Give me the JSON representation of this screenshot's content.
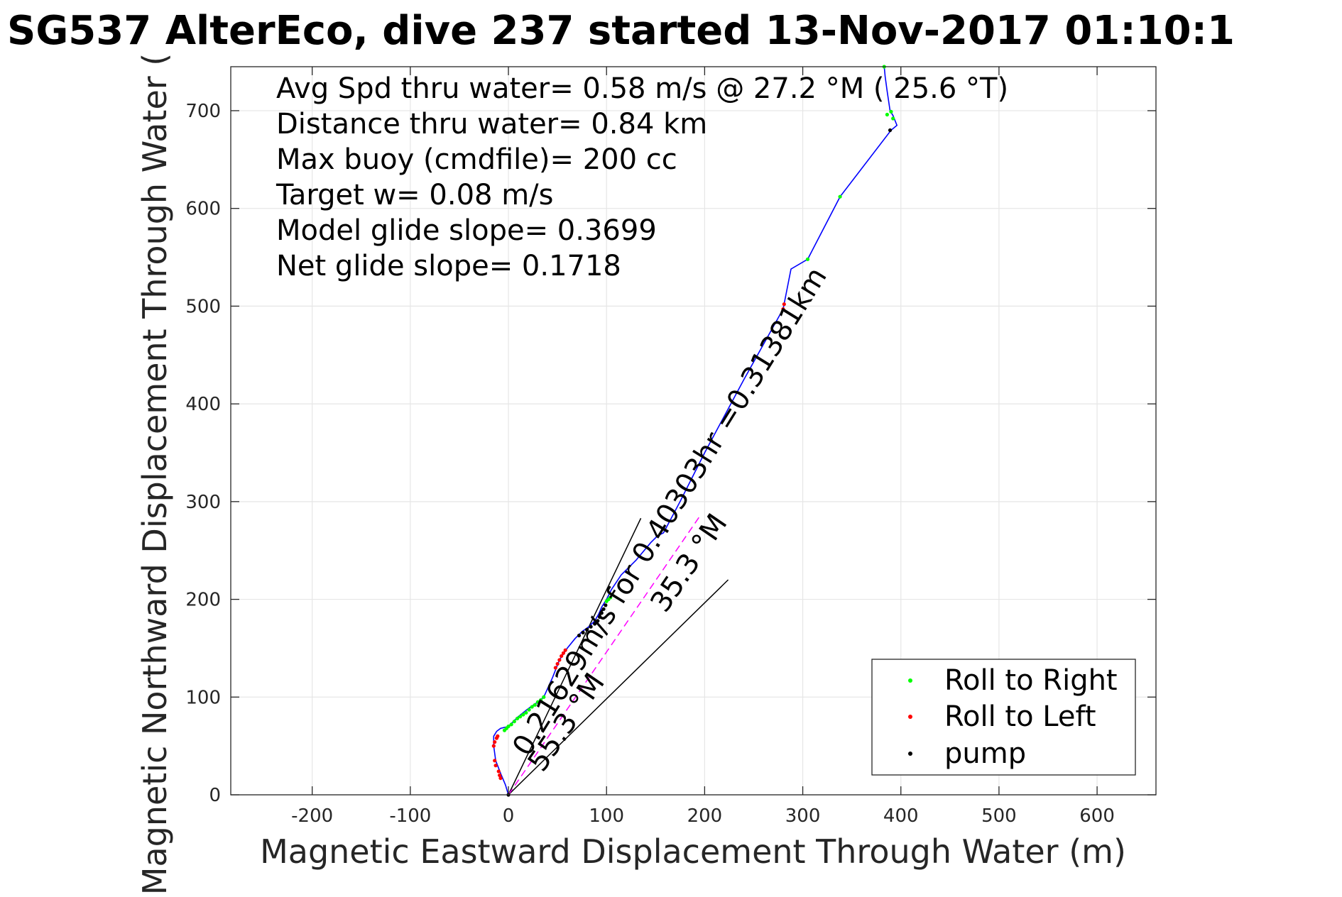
{
  "chart_data": {
    "type": "line",
    "title": "SG537 AlterEco, dive 237 started 13-Nov-2017 01:10:1",
    "xlabel": "Magnetic Eastward Displacement Through Water (m)",
    "ylabel": "Magnetic Northward Displacement Through Water (",
    "xlim": [
      -283,
      660
    ],
    "ylim": [
      0,
      745
    ],
    "xticks": [
      -200,
      -100,
      0,
      100,
      200,
      300,
      400,
      500,
      600
    ],
    "yticks": [
      0,
      100,
      200,
      300,
      400,
      500,
      600,
      700
    ],
    "grid": true,
    "legend_position": "bottom-right",
    "info_text": [
      "Avg Spd thru water=  0.58 m/s @  27.2 °M ( 25.6 °T)",
      "Distance thru water=  0.84 km",
      "Max buoy (cmdfile)= 200 cc",
      "Target w= 0.08 m/s",
      "Model glide slope= 0.3699",
      "Net glide slope= 0.1718"
    ],
    "track": {
      "color": "#0000ff",
      "x": [
        0,
        -3,
        -8,
        -13,
        -15,
        -15,
        -12,
        -8,
        0,
        10,
        20,
        30,
        36,
        45,
        52,
        60,
        68,
        75,
        82,
        88,
        92,
        95,
        100,
        105,
        115,
        130,
        145,
        152,
        158,
        175,
        200,
        240,
        280,
        288,
        305,
        338,
        390,
        396,
        392,
        389,
        386,
        384,
        383
      ],
      "y": [
        0,
        10,
        22,
        35,
        50,
        60,
        65,
        68,
        70,
        80,
        88,
        95,
        100,
        120,
        138,
        150,
        160,
        167,
        172,
        178,
        185,
        192,
        200,
        210,
        225,
        240,
        258,
        265,
        268,
        300,
        350,
        425,
        497,
        538,
        548,
        612,
        680,
        685,
        695,
        700,
        720,
        735,
        745
      ]
    },
    "markers": [
      {
        "name": "Roll to Right",
        "color": "#00ff00",
        "x": [
          -4,
          -2,
          0,
          3,
          6,
          9,
          12,
          15,
          18,
          21,
          24,
          27,
          30,
          33,
          36,
          100,
          102,
          104,
          305,
          338,
          386,
          390,
          392,
          383
        ],
        "y": [
          66,
          68,
          70,
          72,
          75,
          78,
          80,
          82,
          84,
          87,
          90,
          92,
          95,
          97,
          100,
          198,
          200,
          202,
          548,
          612,
          696,
          699,
          692,
          745
        ]
      },
      {
        "name": "Roll to Left",
        "color": "#ff0000",
        "x": [
          -13,
          -14,
          -15,
          -14,
          -12,
          -11,
          -10,
          -9,
          -8,
          48,
          50,
          52,
          54,
          56,
          58,
          280,
          281
        ],
        "y": [
          30,
          35,
          50,
          54,
          58,
          60,
          24,
          20,
          17,
          130,
          134,
          138,
          142,
          145,
          148,
          497,
          502
        ],
        "y_note": ""
      },
      {
        "name": "pump",
        "color": "#000000",
        "x": [
          0,
          72,
          76,
          80,
          84,
          88,
          91,
          93,
          95,
          97,
          99,
          389
        ],
        "y": [
          0,
          163,
          166,
          169,
          172,
          175,
          178,
          182,
          186,
          190,
          194,
          680
        ]
      }
    ],
    "current_lines": [
      {
        "x": [
          0,
          135
        ],
        "y": [
          0,
          283
        ],
        "color": "#000000"
      },
      {
        "x": [
          0,
          224
        ],
        "y": [
          0,
          220
        ],
        "color": "#000000"
      },
      {
        "x": [
          0,
          195
        ],
        "y": [
          0,
          285
        ],
        "color": "#ff00ff",
        "dashed": true
      }
    ],
    "annotations": [
      {
        "text": "0.21629m/s for 0.40303hr =0.31381km",
        "x": 20,
        "y": 38,
        "angle_deg": 58.2
      },
      {
        "text": "55.3 °M",
        "x": 35,
        "y": 22,
        "angle_deg": 55.6
      },
      {
        "text": "35.3 °M",
        "x": 160,
        "y": 185,
        "angle_deg": 55.6
      }
    ]
  }
}
